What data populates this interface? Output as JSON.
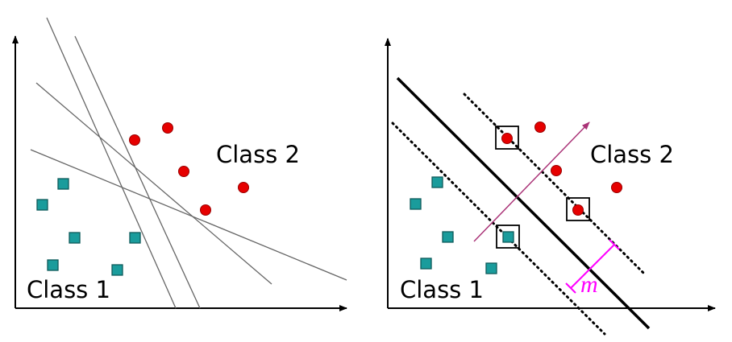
{
  "colors": {
    "class1_square": "#1a9c9c",
    "class2_circle": "#e60000",
    "axis": "#000000",
    "candidate_line": "#666666",
    "normal_arrow": "#aa3377",
    "margin_marker": "#ff00ff"
  },
  "left_panel": {
    "class1_label": "Class 1",
    "class2_label": "Class 2"
  },
  "right_panel": {
    "class1_label": "Class 1",
    "class2_label": "Class 2",
    "margin_label": "m"
  }
}
